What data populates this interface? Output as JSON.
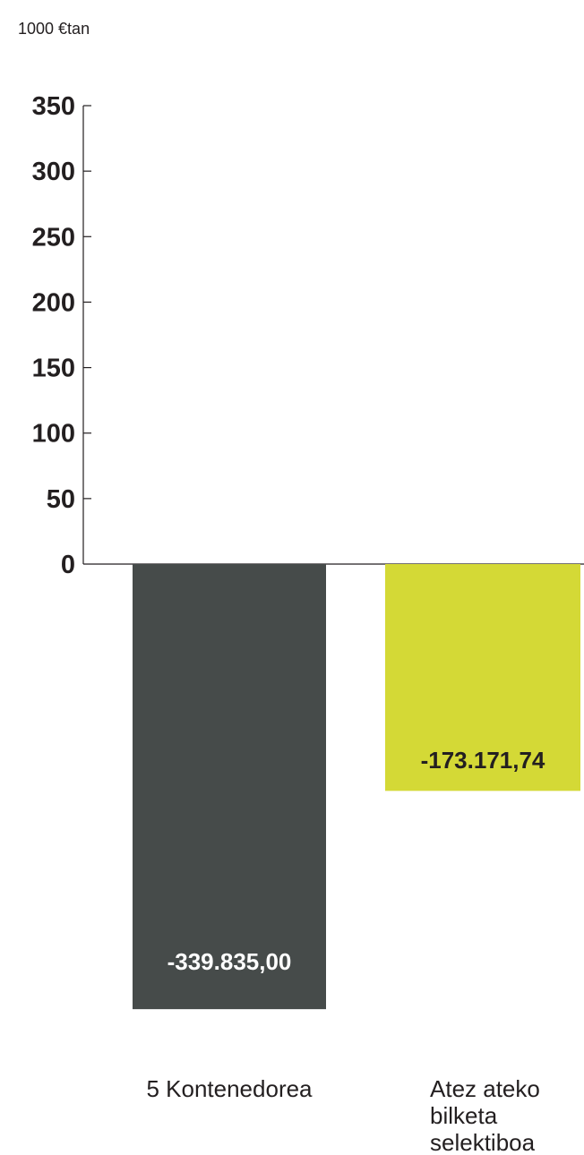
{
  "chart_data": {
    "type": "bar",
    "unit_label": "1000 €tan",
    "ylim": [
      -340,
      350
    ],
    "yticks": [
      0,
      50,
      100,
      150,
      200,
      250,
      300,
      350
    ],
    "ytick_labels": [
      "0",
      "50",
      "100",
      "150",
      "200",
      "250",
      "300",
      "350"
    ],
    "categories": [
      [
        "5 Kontenedorea"
      ],
      [
        "Atez ateko",
        "bilketa",
        "selektiboa"
      ]
    ],
    "values": [
      -339.835,
      -173.17174
    ],
    "value_labels": [
      "-339.835,00",
      "-173.171,74"
    ],
    "colors": [
      "#464b4a",
      "#d4d936"
    ],
    "value_label_colors": [
      "#ffffff",
      "#231f20"
    ],
    "grid": false,
    "legend": "none"
  }
}
